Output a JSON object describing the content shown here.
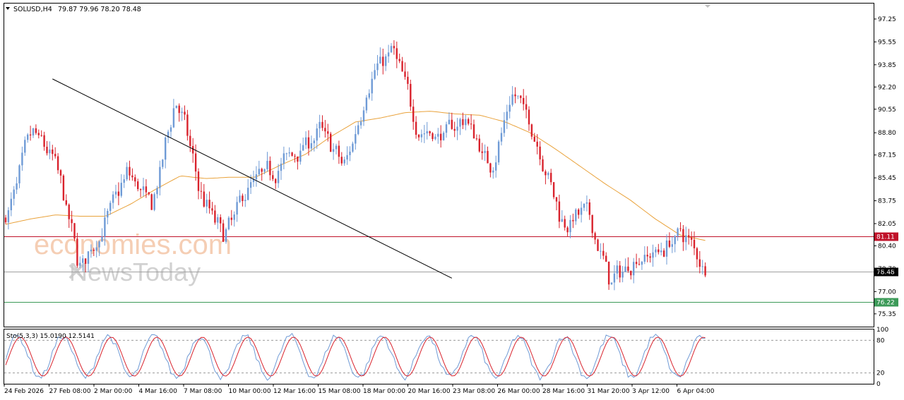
{
  "header": {
    "symbol": "SOLUSD,H4",
    "ohlc": "79.87 79.96 78.20 78.48"
  },
  "watermark": {
    "brand": "economies.com",
    "sub": "NewsToday"
  },
  "colors": {
    "bull": "#6f9bd6",
    "bear": "#d9232d",
    "ma": "#e9a23b",
    "trendline": "#000000",
    "resistance": "#c0122a",
    "support": "#3c9a58",
    "stoch_main": "#6f9bd6",
    "stoch_signal": "#d9232d"
  },
  "chart_data": {
    "type": "candlestick",
    "ylim": [
      74.4,
      98.4
    ],
    "yticks": [
      "97.25",
      "95.55",
      "93.85",
      "92.20",
      "90.55",
      "88.80",
      "87.15",
      "85.45",
      "83.75",
      "82.05",
      "80.40",
      "78.70",
      "77.00",
      "75.35"
    ],
    "xticks": [
      "24 Feb 2026",
      "27 Feb 08:00",
      "2 Mar 00:00",
      "4 Mar 16:00",
      "7 Mar 08:00",
      "10 Mar 00:00",
      "12 Mar 16:00",
      "15 Mar 08:00",
      "18 Mar 00:00",
      "20 Mar 16:00",
      "23 Mar 08:00",
      "26 Mar 00:00",
      "28 Mar 16:00",
      "31 Mar 20:00",
      "3 Apr 12:00",
      "6 Apr 04:00"
    ],
    "levels": [
      {
        "name": "resistance",
        "value": 81.11,
        "label": "81.11"
      },
      {
        "name": "current",
        "value": 78.48,
        "label": "78.48"
      },
      {
        "name": "support",
        "value": 76.22,
        "label": "76.22"
      }
    ],
    "trendline": {
      "from": {
        "bar": 167,
        "price": 92.8
      },
      "to": {
        "bar": 262,
        "price": 78.0
      }
    },
    "ma_points": [
      82.0,
      82.4,
      82.7,
      82.6,
      82.6,
      83.5,
      84.6,
      85.6,
      85.4,
      85.5,
      85.5,
      86.4,
      87.2,
      88.5,
      89.6,
      89.9,
      90.3,
      90.4,
      90.2,
      90.1,
      89.6,
      88.8,
      87.6,
      86.3,
      85.0,
      83.8,
      82.4,
      81.2,
      80.8
    ],
    "close_points": [
      82.5,
      89.0,
      86.5,
      78.5,
      82.0,
      86.0,
      83.0,
      92.0,
      84.0,
      81.0,
      85.0,
      86.0,
      87.5,
      89.0,
      86.0,
      93.0,
      95.0,
      89.0,
      88.5,
      90.0,
      86.0,
      92.0,
      88.0,
      82.0,
      83.0,
      77.5,
      79.5,
      80.0,
      81.5,
      78.48
    ],
    "stoch": {
      "label": "Sto(5,3,3) 15.0190 12.5141",
      "ylim": [
        0,
        100
      ],
      "yticks": [
        "100",
        "80",
        "20",
        "0"
      ],
      "levels": [
        20,
        80
      ]
    }
  }
}
